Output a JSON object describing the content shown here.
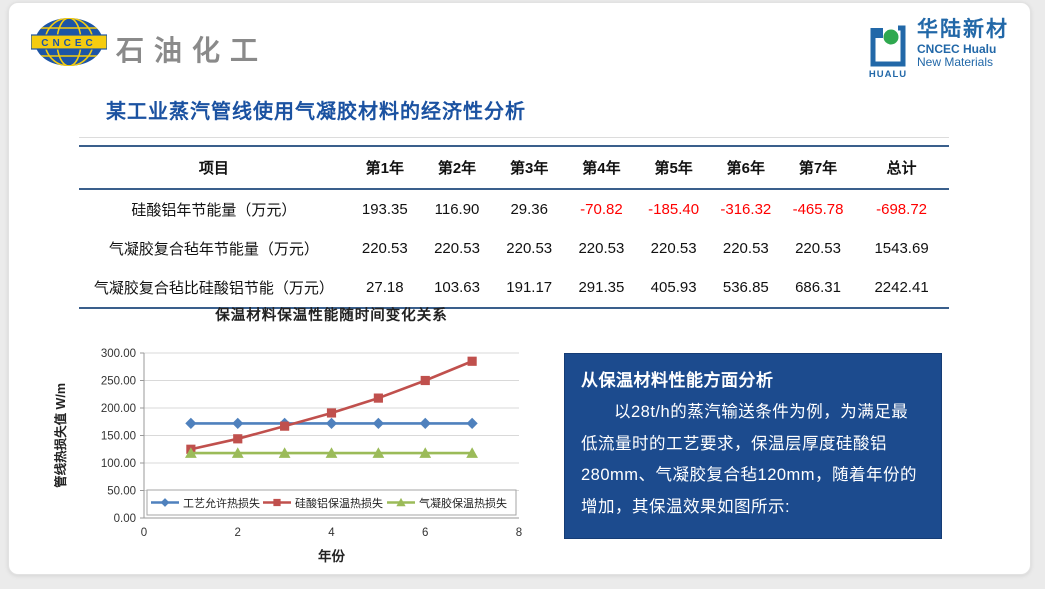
{
  "header": {
    "left_logo_text": "CNCEC",
    "left_brand": "石油化工",
    "right_logo_text": "HUALU",
    "right_brand_cn": "华陆新材",
    "right_brand_en1": "CNCEC Hualu",
    "right_brand_en2": "New Materials"
  },
  "title": "某工业蒸汽管线使用气凝胶材料的经济性分析",
  "table": {
    "columns": [
      "项目",
      "第1年",
      "第2年",
      "第3年",
      "第4年",
      "第5年",
      "第6年",
      "第7年",
      "总计"
    ],
    "rows": [
      {
        "label": "硅酸铝年节能量（万元）",
        "values": [
          "193.35",
          "116.90",
          "29.36",
          "-70.82",
          "-185.40",
          "-316.32",
          "-465.78",
          "-698.72"
        ]
      },
      {
        "label": "气凝胶复合毡年节能量（万元）",
        "values": [
          "220.53",
          "220.53",
          "220.53",
          "220.53",
          "220.53",
          "220.53",
          "220.53",
          "1543.69"
        ]
      },
      {
        "label": "气凝胶复合毡比硅酸铝节能（万元）",
        "values": [
          "27.18",
          "103.63",
          "191.17",
          "291.35",
          "405.93",
          "536.85",
          "686.31",
          "2242.41"
        ]
      }
    ],
    "negative_color": "#FF0000",
    "border_color": "#3A5F8C"
  },
  "chart_data": {
    "type": "line",
    "title": "保温材料保温性能随时间变化关系",
    "xlabel": "年份",
    "ylabel": "管线热损失值 W/m",
    "x": [
      1,
      2,
      3,
      4,
      5,
      6,
      7
    ],
    "series": [
      {
        "name": "工艺允许热损失",
        "marker": "diamond",
        "color": "#4F81BD",
        "values": [
          172,
          172,
          172,
          172,
          172,
          172,
          172
        ]
      },
      {
        "name": "硅酸铝保温热损失",
        "marker": "square",
        "color": "#C0504D",
        "values": [
          125,
          144,
          167,
          191,
          218,
          250,
          285
        ]
      },
      {
        "name": "气凝胶保温热损失",
        "marker": "triangle",
        "color": "#9BBB59",
        "values": [
          118,
          118,
          118,
          118,
          118,
          118,
          118
        ]
      }
    ],
    "xlim": [
      0,
      8
    ],
    "ylim": [
      0,
      300
    ],
    "xticks": [
      0,
      2,
      4,
      6,
      8
    ],
    "yticks": [
      "0.00",
      "50.00",
      "100.00",
      "150.00",
      "200.00",
      "250.00",
      "300.00"
    ],
    "grid": true,
    "legend_position": "bottom-inside"
  },
  "analysis_box": {
    "heading": "从保温材料性能方面分析",
    "body": "以28t/h的蒸汽输送条件为例，为满足最低流量时的工艺要求，保温层厚度硅酸铝280mm、气凝胶复合毡120mm，随着年份的增加，其保温效果如图所示:",
    "background": "#1C4B8E",
    "text_color": "#FFFFFF"
  },
  "colors": {
    "title_blue": "#1B52A1",
    "brand_gray": "#8A8A8A",
    "logo_blue": "#1D55A5",
    "logo_yellow": "#F5CC0F",
    "hualu_green": "#2FA84F"
  }
}
